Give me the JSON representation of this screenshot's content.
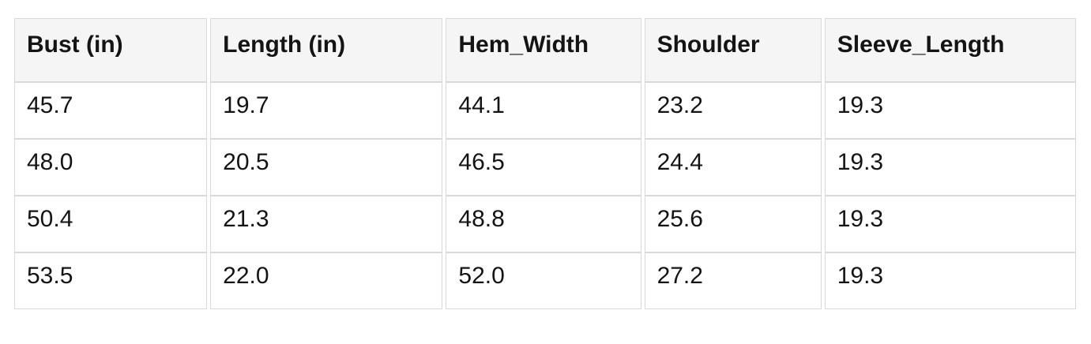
{
  "colors": {
    "header_bg": "#f5f5f5",
    "border": "#d9d9d9",
    "text": "#141414",
    "page_bg": "#ffffff"
  },
  "table": {
    "columns": [
      "Bust (in)",
      "Length (in)",
      "Hem_Width",
      "Shoulder",
      "Sleeve_Length"
    ],
    "rows": [
      [
        "45.7",
        "19.7",
        "44.1",
        "23.2",
        "19.3"
      ],
      [
        "48.0",
        "20.5",
        "46.5",
        "24.4",
        "19.3"
      ],
      [
        "50.4",
        "21.3",
        "48.8",
        "25.6",
        "19.3"
      ],
      [
        "53.5",
        "22.0",
        "52.0",
        "27.2",
        "19.3"
      ]
    ]
  },
  "chart_data": {
    "type": "table",
    "title": "",
    "columns": [
      "Bust (in)",
      "Length (in)",
      "Hem_Width",
      "Shoulder",
      "Sleeve_Length"
    ],
    "rows": [
      [
        45.7,
        19.7,
        44.1,
        23.2,
        19.3
      ],
      [
        48.0,
        20.5,
        46.5,
        24.4,
        19.3
      ],
      [
        50.4,
        21.3,
        48.8,
        25.6,
        19.3
      ],
      [
        53.5,
        22.0,
        52.0,
        27.2,
        19.3
      ]
    ]
  }
}
